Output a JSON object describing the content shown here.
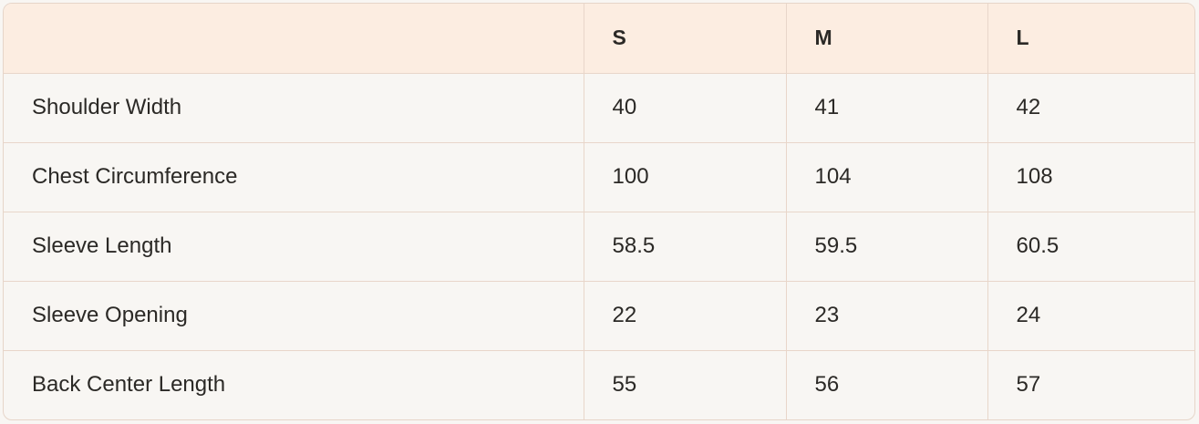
{
  "table": {
    "headers": [
      "",
      "S",
      "M",
      "L"
    ],
    "rows": [
      {
        "label": "Shoulder Width",
        "values": [
          "40",
          "41",
          "42"
        ]
      },
      {
        "label": "Chest Circumference",
        "values": [
          "100",
          "104",
          "108"
        ]
      },
      {
        "label": "Sleeve Length",
        "values": [
          "58.5",
          "59.5",
          "60.5"
        ]
      },
      {
        "label": "Sleeve Opening",
        "values": [
          "22",
          "23",
          "24"
        ]
      },
      {
        "label": "Back Center Length",
        "values": [
          "55",
          "56",
          "57"
        ]
      }
    ]
  },
  "colors": {
    "header_bg": "#fcede1",
    "body_bg": "#f8f6f3",
    "border": "#e8d6ca"
  }
}
